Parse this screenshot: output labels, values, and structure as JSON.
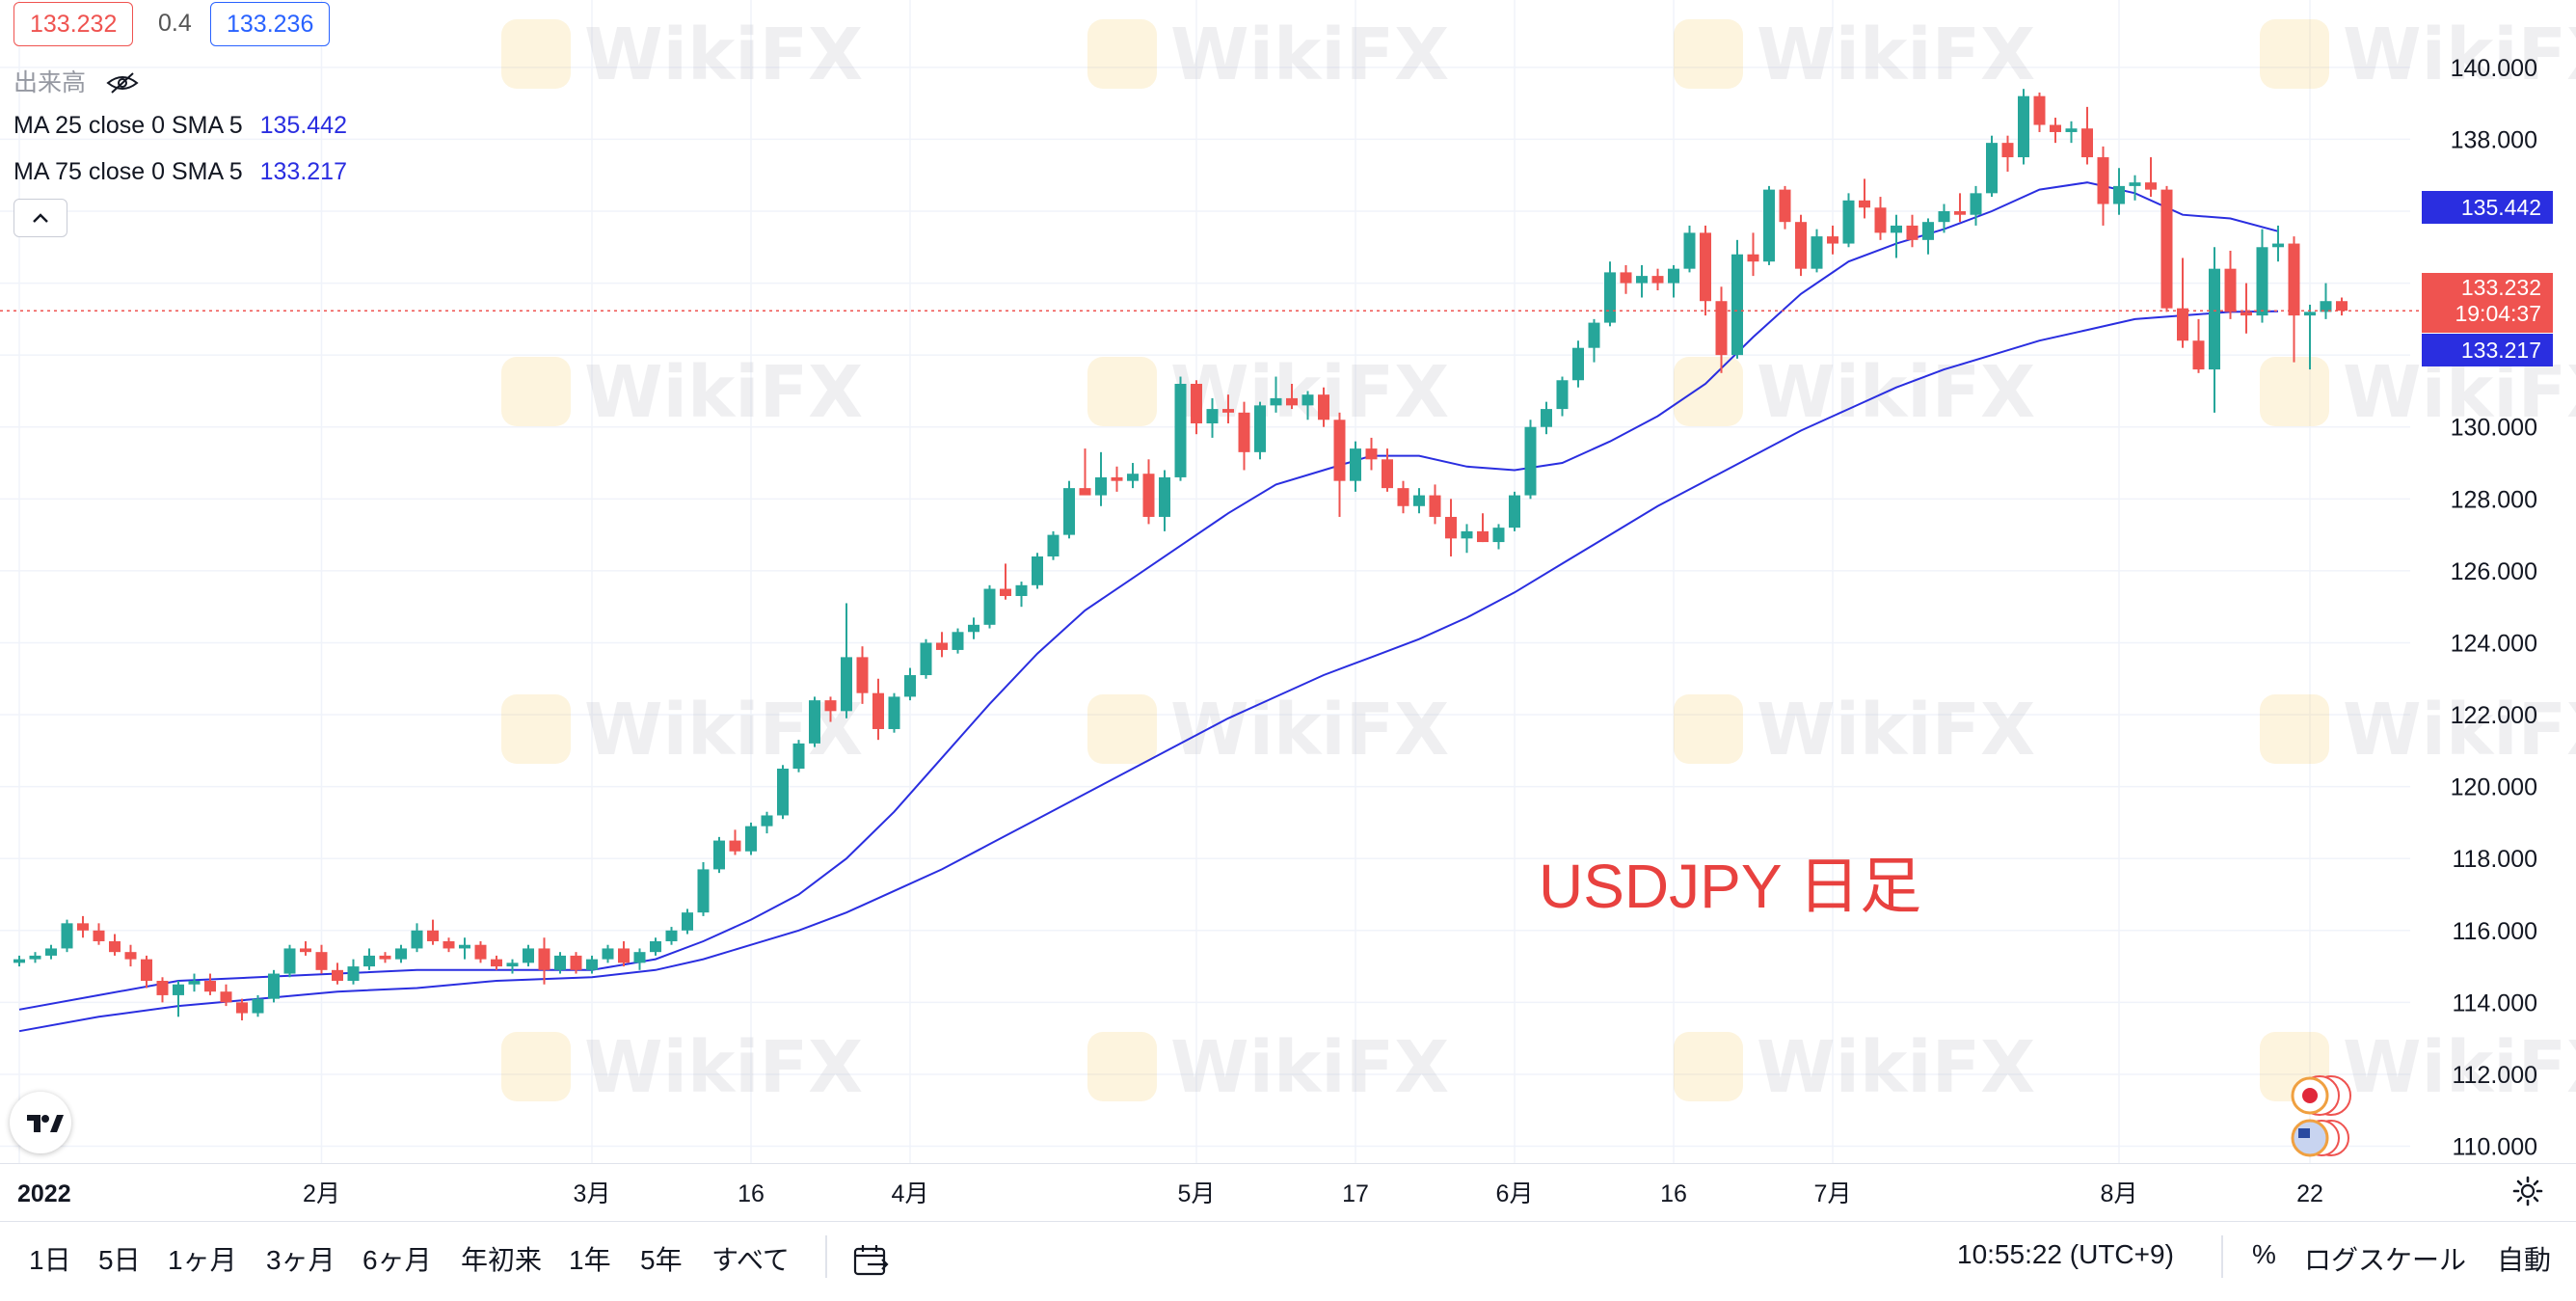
{
  "legend": {
    "price_red": "133.232",
    "spread": "0.4",
    "price_blue": "133.236",
    "volume_label": "出来高",
    "ma25_label": "MA 25 close 0 SMA 5",
    "ma25_value": "135.442",
    "ma75_label": "MA 75 close 0 SMA 5",
    "ma75_value": "133.217"
  },
  "chart_title": "USDJPY 日足",
  "price_labels": {
    "ma25": "135.442",
    "last": "133.232",
    "countdown": "19:04:37",
    "ma75": "133.217"
  },
  "watermark": "WikiFX",
  "toolbar": {
    "timeframes": [
      "1日",
      "5日",
      "1ヶ月",
      "3ヶ月",
      "6ヶ月",
      "年初来",
      "1年",
      "5年",
      "すべて"
    ],
    "clock": "10:55:22 (UTC+9)",
    "percent": "%",
    "log_scale": "ログスケール",
    "auto": "自動"
  },
  "colors": {
    "up": "#26a69a",
    "down": "#ef5350",
    "ma": "#2a2ee0",
    "title": "#e8413f"
  },
  "chart_data": {
    "type": "candlestick",
    "title": "USDJPY 日足",
    "ylim": [
      109.8,
      140.8
    ],
    "y_ticks": [
      110,
      112,
      114,
      116,
      118,
      120,
      122,
      124,
      126,
      128,
      130,
      132,
      134,
      136,
      138,
      140
    ],
    "y_tick_labels": [
      "110.000",
      "112.000",
      "114.000",
      "116.000",
      "118.000",
      "120.000",
      "122.000",
      "124.000",
      "126.000",
      "128.000",
      "130.000",
      "132.000",
      "134.000",
      "136.000",
      "138.000",
      "140.000"
    ],
    "x_tick_labels": [
      {
        "i": 0,
        "label": "2022",
        "bold": true
      },
      {
        "i": 19,
        "label": "2月"
      },
      {
        "i": 36,
        "label": "3月"
      },
      {
        "i": 46,
        "label": "16"
      },
      {
        "i": 56,
        "label": "4月"
      },
      {
        "i": 74,
        "label": "5月"
      },
      {
        "i": 84,
        "label": "17"
      },
      {
        "i": 94,
        "label": "6月"
      },
      {
        "i": 104,
        "label": "16"
      },
      {
        "i": 114,
        "label": "7月"
      },
      {
        "i": 132,
        "label": "8月"
      },
      {
        "i": 144,
        "label": "22"
      }
    ],
    "candles_ohlc": [
      [
        115.1,
        115.3,
        115.0,
        115.2
      ],
      [
        115.2,
        115.4,
        115.1,
        115.3
      ],
      [
        115.3,
        115.6,
        115.2,
        115.5
      ],
      [
        115.5,
        116.3,
        115.4,
        116.2
      ],
      [
        116.2,
        116.4,
        115.8,
        116.0
      ],
      [
        116.0,
        116.2,
        115.6,
        115.7
      ],
      [
        115.7,
        115.9,
        115.3,
        115.4
      ],
      [
        115.4,
        115.6,
        115.0,
        115.2
      ],
      [
        115.2,
        115.3,
        114.4,
        114.6
      ],
      [
        114.6,
        114.7,
        114.0,
        114.2
      ],
      [
        114.2,
        114.6,
        113.6,
        114.5
      ],
      [
        114.5,
        114.8,
        114.3,
        114.6
      ],
      [
        114.6,
        114.8,
        114.2,
        114.3
      ],
      [
        114.3,
        114.5,
        113.9,
        114.0
      ],
      [
        114.0,
        114.1,
        113.5,
        113.7
      ],
      [
        113.7,
        114.2,
        113.6,
        114.1
      ],
      [
        114.1,
        114.9,
        114.0,
        114.8
      ],
      [
        114.8,
        115.6,
        114.7,
        115.5
      ],
      [
        115.5,
        115.7,
        115.3,
        115.4
      ],
      [
        115.4,
        115.6,
        114.8,
        114.9
      ],
      [
        114.9,
        115.1,
        114.5,
        114.6
      ],
      [
        114.6,
        115.2,
        114.5,
        115.0
      ],
      [
        115.0,
        115.5,
        114.9,
        115.3
      ],
      [
        115.3,
        115.4,
        115.1,
        115.2
      ],
      [
        115.2,
        115.6,
        115.1,
        115.5
      ],
      [
        115.5,
        116.2,
        115.4,
        116.0
      ],
      [
        116.0,
        116.3,
        115.6,
        115.7
      ],
      [
        115.7,
        115.8,
        115.4,
        115.5
      ],
      [
        115.5,
        115.8,
        115.2,
        115.6
      ],
      [
        115.6,
        115.7,
        115.1,
        115.2
      ],
      [
        115.2,
        115.3,
        114.9,
        115.0
      ],
      [
        115.0,
        115.2,
        114.8,
        115.1
      ],
      [
        115.1,
        115.6,
        115.0,
        115.5
      ],
      [
        115.5,
        115.8,
        114.5,
        114.9
      ],
      [
        114.9,
        115.4,
        114.8,
        115.3
      ],
      [
        115.3,
        115.4,
        114.8,
        114.9
      ],
      [
        114.9,
        115.3,
        114.8,
        115.2
      ],
      [
        115.2,
        115.6,
        115.1,
        115.5
      ],
      [
        115.5,
        115.7,
        115.0,
        115.1
      ],
      [
        115.1,
        115.5,
        114.9,
        115.4
      ],
      [
        115.4,
        115.8,
        115.3,
        115.7
      ],
      [
        115.7,
        116.1,
        115.6,
        116.0
      ],
      [
        116.0,
        116.6,
        115.9,
        116.5
      ],
      [
        116.5,
        117.9,
        116.4,
        117.7
      ],
      [
        117.7,
        118.6,
        117.6,
        118.5
      ],
      [
        118.5,
        118.8,
        118.1,
        118.2
      ],
      [
        118.2,
        119.0,
        118.1,
        118.9
      ],
      [
        118.9,
        119.3,
        118.7,
        119.2
      ],
      [
        119.2,
        120.6,
        119.1,
        120.5
      ],
      [
        120.5,
        121.3,
        120.4,
        121.2
      ],
      [
        121.2,
        122.5,
        121.1,
        122.4
      ],
      [
        122.4,
        122.5,
        121.8,
        122.1
      ],
      [
        122.1,
        125.1,
        121.9,
        123.6
      ],
      [
        123.6,
        123.9,
        122.3,
        122.6
      ],
      [
        122.6,
        123.0,
        121.3,
        121.6
      ],
      [
        121.6,
        122.6,
        121.5,
        122.5
      ],
      [
        122.5,
        123.3,
        122.4,
        123.1
      ],
      [
        123.1,
        124.1,
        123.0,
        124.0
      ],
      [
        124.0,
        124.3,
        123.6,
        123.8
      ],
      [
        123.8,
        124.4,
        123.7,
        124.3
      ],
      [
        124.3,
        124.7,
        124.1,
        124.5
      ],
      [
        124.5,
        125.6,
        124.4,
        125.5
      ],
      [
        125.5,
        126.2,
        125.2,
        125.3
      ],
      [
        125.3,
        125.7,
        125.0,
        125.6
      ],
      [
        125.6,
        126.5,
        125.5,
        126.4
      ],
      [
        126.4,
        127.1,
        126.3,
        127.0
      ],
      [
        127.0,
        128.5,
        126.9,
        128.3
      ],
      [
        128.3,
        129.4,
        128.2,
        128.1
      ],
      [
        128.1,
        129.3,
        127.8,
        128.6
      ],
      [
        128.6,
        128.9,
        128.2,
        128.5
      ],
      [
        128.5,
        129.0,
        128.3,
        128.7
      ],
      [
        128.7,
        129.1,
        127.3,
        127.5
      ],
      [
        127.5,
        128.8,
        127.1,
        128.6
      ],
      [
        128.6,
        131.4,
        128.5,
        131.2
      ],
      [
        131.2,
        131.3,
        129.8,
        130.1
      ],
      [
        130.1,
        130.8,
        129.7,
        130.5
      ],
      [
        130.5,
        130.9,
        130.1,
        130.4
      ],
      [
        130.4,
        130.7,
        128.8,
        129.3
      ],
      [
        129.3,
        130.7,
        129.1,
        130.6
      ],
      [
        130.6,
        131.4,
        130.4,
        130.8
      ],
      [
        130.8,
        131.2,
        130.5,
        130.6
      ],
      [
        130.6,
        131.0,
        130.2,
        130.9
      ],
      [
        130.9,
        131.1,
        130.0,
        130.2
      ],
      [
        130.2,
        130.4,
        127.5,
        128.5
      ],
      [
        128.5,
        129.6,
        128.2,
        129.4
      ],
      [
        129.4,
        129.7,
        128.8,
        129.1
      ],
      [
        129.1,
        129.4,
        128.2,
        128.3
      ],
      [
        128.3,
        128.5,
        127.6,
        127.8
      ],
      [
        127.8,
        128.3,
        127.6,
        128.1
      ],
      [
        128.1,
        128.4,
        127.3,
        127.5
      ],
      [
        127.5,
        128.0,
        126.4,
        126.9
      ],
      [
        126.9,
        127.3,
        126.5,
        127.1
      ],
      [
        127.1,
        127.6,
        126.8,
        126.8
      ],
      [
        126.8,
        127.3,
        126.6,
        127.2
      ],
      [
        127.2,
        128.2,
        127.1,
        128.1
      ],
      [
        128.1,
        130.2,
        128.0,
        130.0
      ],
      [
        130.0,
        130.7,
        129.8,
        130.5
      ],
      [
        130.5,
        131.4,
        130.3,
        131.3
      ],
      [
        131.3,
        132.4,
        131.1,
        132.2
      ],
      [
        132.2,
        133.0,
        131.8,
        132.9
      ],
      [
        132.9,
        134.6,
        132.8,
        134.3
      ],
      [
        134.3,
        134.5,
        133.7,
        134.0
      ],
      [
        134.0,
        134.5,
        133.6,
        134.2
      ],
      [
        134.2,
        134.4,
        133.8,
        134.0
      ],
      [
        134.0,
        134.5,
        133.6,
        134.4
      ],
      [
        134.4,
        135.6,
        134.3,
        135.4
      ],
      [
        135.4,
        135.6,
        133.1,
        133.5
      ],
      [
        133.5,
        133.9,
        131.5,
        132.0
      ],
      [
        132.0,
        135.2,
        131.9,
        134.8
      ],
      [
        134.8,
        135.4,
        134.2,
        134.6
      ],
      [
        134.6,
        136.7,
        134.5,
        136.6
      ],
      [
        136.6,
        136.7,
        135.5,
        135.7
      ],
      [
        135.7,
        135.9,
        134.2,
        134.4
      ],
      [
        134.4,
        135.5,
        134.3,
        135.3
      ],
      [
        135.3,
        135.6,
        134.8,
        135.1
      ],
      [
        135.1,
        136.5,
        135.0,
        136.3
      ],
      [
        136.3,
        136.9,
        135.8,
        136.1
      ],
      [
        136.1,
        136.4,
        135.2,
        135.4
      ],
      [
        135.4,
        135.9,
        134.7,
        135.6
      ],
      [
        135.6,
        135.9,
        135.0,
        135.2
      ],
      [
        135.2,
        135.8,
        134.8,
        135.7
      ],
      [
        135.7,
        136.2,
        135.4,
        136.0
      ],
      [
        136.0,
        136.5,
        135.7,
        135.9
      ],
      [
        135.9,
        136.7,
        135.6,
        136.5
      ],
      [
        136.5,
        138.1,
        136.4,
        137.9
      ],
      [
        137.9,
        138.1,
        137.1,
        137.5
      ],
      [
        137.5,
        139.4,
        137.3,
        139.2
      ],
      [
        139.2,
        139.3,
        138.2,
        138.4
      ],
      [
        138.4,
        138.6,
        137.9,
        138.2
      ],
      [
        138.2,
        138.5,
        137.9,
        138.3
      ],
      [
        138.3,
        138.9,
        137.3,
        137.5
      ],
      [
        137.5,
        137.8,
        135.6,
        136.2
      ],
      [
        136.2,
        137.2,
        135.9,
        136.7
      ],
      [
        136.7,
        137.0,
        136.3,
        136.8
      ],
      [
        136.8,
        137.5,
        136.4,
        136.6
      ],
      [
        136.6,
        136.7,
        133.2,
        133.3
      ],
      [
        133.3,
        134.7,
        132.2,
        132.4
      ],
      [
        132.4,
        133.0,
        131.5,
        131.6
      ],
      [
        131.6,
        135.0,
        130.4,
        134.4
      ],
      [
        134.4,
        134.9,
        133.0,
        133.2
      ],
      [
        133.2,
        134.0,
        132.6,
        133.1
      ],
      [
        133.1,
        135.5,
        132.9,
        135.0
      ],
      [
        135.0,
        135.6,
        134.6,
        135.1
      ],
      [
        135.1,
        135.3,
        131.8,
        133.1
      ],
      [
        133.1,
        133.4,
        131.6,
        133.2
      ],
      [
        133.2,
        134.0,
        133.0,
        133.5
      ],
      [
        133.5,
        133.6,
        133.1,
        133.232
      ]
    ],
    "series": [
      {
        "name": "MA 25 close 0 SMA 5",
        "points": [
          [
            0,
            113.8
          ],
          [
            5,
            114.2
          ],
          [
            10,
            114.6
          ],
          [
            15,
            114.7
          ],
          [
            20,
            114.8
          ],
          [
            25,
            114.9
          ],
          [
            30,
            114.9
          ],
          [
            36,
            114.9
          ],
          [
            40,
            115.2
          ],
          [
            43,
            115.7
          ],
          [
            46,
            116.3
          ],
          [
            49,
            117.0
          ],
          [
            52,
            118.0
          ],
          [
            55,
            119.3
          ],
          [
            58,
            120.8
          ],
          [
            61,
            122.3
          ],
          [
            64,
            123.7
          ],
          [
            67,
            124.9
          ],
          [
            70,
            125.8
          ],
          [
            73,
            126.7
          ],
          [
            76,
            127.6
          ],
          [
            79,
            128.4
          ],
          [
            82,
            128.8
          ],
          [
            85,
            129.2
          ],
          [
            88,
            129.2
          ],
          [
            91,
            128.9
          ],
          [
            94,
            128.8
          ],
          [
            97,
            129.0
          ],
          [
            100,
            129.6
          ],
          [
            103,
            130.3
          ],
          [
            106,
            131.2
          ],
          [
            109,
            132.5
          ],
          [
            112,
            133.7
          ],
          [
            115,
            134.6
          ],
          [
            118,
            135.1
          ],
          [
            121,
            135.5
          ],
          [
            124,
            136.0
          ],
          [
            127,
            136.6
          ],
          [
            130,
            136.8
          ],
          [
            133,
            136.5
          ],
          [
            136,
            135.9
          ],
          [
            139,
            135.8
          ],
          [
            142,
            135.442
          ]
        ]
      },
      {
        "name": "MA 75 close 0 SMA 5",
        "points": [
          [
            0,
            113.2
          ],
          [
            5,
            113.6
          ],
          [
            10,
            113.9
          ],
          [
            15,
            114.1
          ],
          [
            20,
            114.3
          ],
          [
            25,
            114.4
          ],
          [
            30,
            114.6
          ],
          [
            36,
            114.7
          ],
          [
            40,
            114.9
          ],
          [
            43,
            115.2
          ],
          [
            46,
            115.6
          ],
          [
            49,
            116.0
          ],
          [
            52,
            116.5
          ],
          [
            55,
            117.1
          ],
          [
            58,
            117.7
          ],
          [
            61,
            118.4
          ],
          [
            64,
            119.1
          ],
          [
            67,
            119.8
          ],
          [
            70,
            120.5
          ],
          [
            73,
            121.2
          ],
          [
            76,
            121.9
          ],
          [
            79,
            122.5
          ],
          [
            82,
            123.1
          ],
          [
            85,
            123.6
          ],
          [
            88,
            124.1
          ],
          [
            91,
            124.7
          ],
          [
            94,
            125.4
          ],
          [
            97,
            126.2
          ],
          [
            100,
            127.0
          ],
          [
            103,
            127.8
          ],
          [
            106,
            128.5
          ],
          [
            109,
            129.2
          ],
          [
            112,
            129.9
          ],
          [
            115,
            130.5
          ],
          [
            118,
            131.1
          ],
          [
            121,
            131.6
          ],
          [
            124,
            132.0
          ],
          [
            127,
            132.4
          ],
          [
            130,
            132.7
          ],
          [
            133,
            133.0
          ],
          [
            136,
            133.1
          ],
          [
            139,
            133.2
          ],
          [
            142,
            133.217
          ]
        ]
      }
    ]
  }
}
